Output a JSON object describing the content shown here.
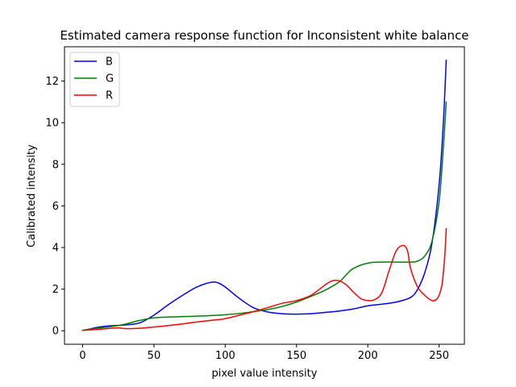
{
  "chart_data": {
    "type": "line",
    "title": "Estimated camera response function for Inconsistent white balance",
    "xlabel": "pixel value intensity",
    "ylabel": "Calibrated intensity",
    "xlim": [
      -12.75,
      267.75
    ],
    "ylim": [
      -0.65,
      13.65
    ],
    "xticks": [
      0,
      50,
      100,
      150,
      200,
      250
    ],
    "yticks": [
      0,
      2,
      4,
      6,
      8,
      10,
      12
    ],
    "grid": false,
    "legend_position": "top-left",
    "series": [
      {
        "name": "B",
        "color": "#0000ff",
        "x": [
          0,
          5,
          10,
          20,
          30,
          40,
          50,
          60,
          70,
          80,
          90,
          95,
          100,
          110,
          120,
          130,
          140,
          150,
          160,
          170,
          180,
          190,
          200,
          210,
          220,
          230,
          235,
          240,
          245,
          250,
          253,
          255
        ],
        "y": [
          0.02,
          0.08,
          0.16,
          0.24,
          0.28,
          0.38,
          0.75,
          1.25,
          1.7,
          2.1,
          2.33,
          2.3,
          2.1,
          1.55,
          1.1,
          0.9,
          0.82,
          0.8,
          0.82,
          0.88,
          0.95,
          1.05,
          1.2,
          1.28,
          1.38,
          1.6,
          2.0,
          2.8,
          4.2,
          7.0,
          10.0,
          13.0
        ]
      },
      {
        "name": "G",
        "color": "#008000",
        "x": [
          0,
          5,
          10,
          20,
          30,
          40,
          50,
          60,
          70,
          80,
          90,
          100,
          110,
          120,
          130,
          140,
          150,
          160,
          170,
          180,
          185,
          190,
          200,
          210,
          220,
          230,
          235,
          240,
          245,
          250,
          253,
          255
        ],
        "y": [
          0.02,
          0.07,
          0.12,
          0.2,
          0.32,
          0.5,
          0.62,
          0.66,
          0.68,
          0.7,
          0.73,
          0.77,
          0.83,
          0.92,
          1.02,
          1.17,
          1.38,
          1.65,
          1.95,
          2.35,
          2.7,
          3.0,
          3.25,
          3.3,
          3.3,
          3.3,
          3.35,
          3.6,
          4.3,
          6.2,
          8.8,
          11.0
        ]
      },
      {
        "name": "R",
        "color": "#ff0000",
        "x": [
          0,
          10,
          20,
          25,
          30,
          40,
          50,
          60,
          70,
          80,
          90,
          100,
          110,
          120,
          130,
          140,
          150,
          160,
          170,
          175,
          180,
          185,
          190,
          195,
          200,
          205,
          210,
          215,
          220,
          225,
          228,
          230,
          235,
          240,
          245,
          248,
          250,
          252,
          253,
          254,
          255
        ],
        "y": [
          0.02,
          0.06,
          0.12,
          0.14,
          0.1,
          0.12,
          0.18,
          0.25,
          0.33,
          0.42,
          0.5,
          0.58,
          0.75,
          0.92,
          1.12,
          1.32,
          1.45,
          1.7,
          2.2,
          2.4,
          2.4,
          2.2,
          1.85,
          1.55,
          1.45,
          1.5,
          1.85,
          2.9,
          3.85,
          4.1,
          3.8,
          3.0,
          2.1,
          1.7,
          1.45,
          1.5,
          1.7,
          2.2,
          2.8,
          3.6,
          4.9
        ]
      }
    ]
  }
}
